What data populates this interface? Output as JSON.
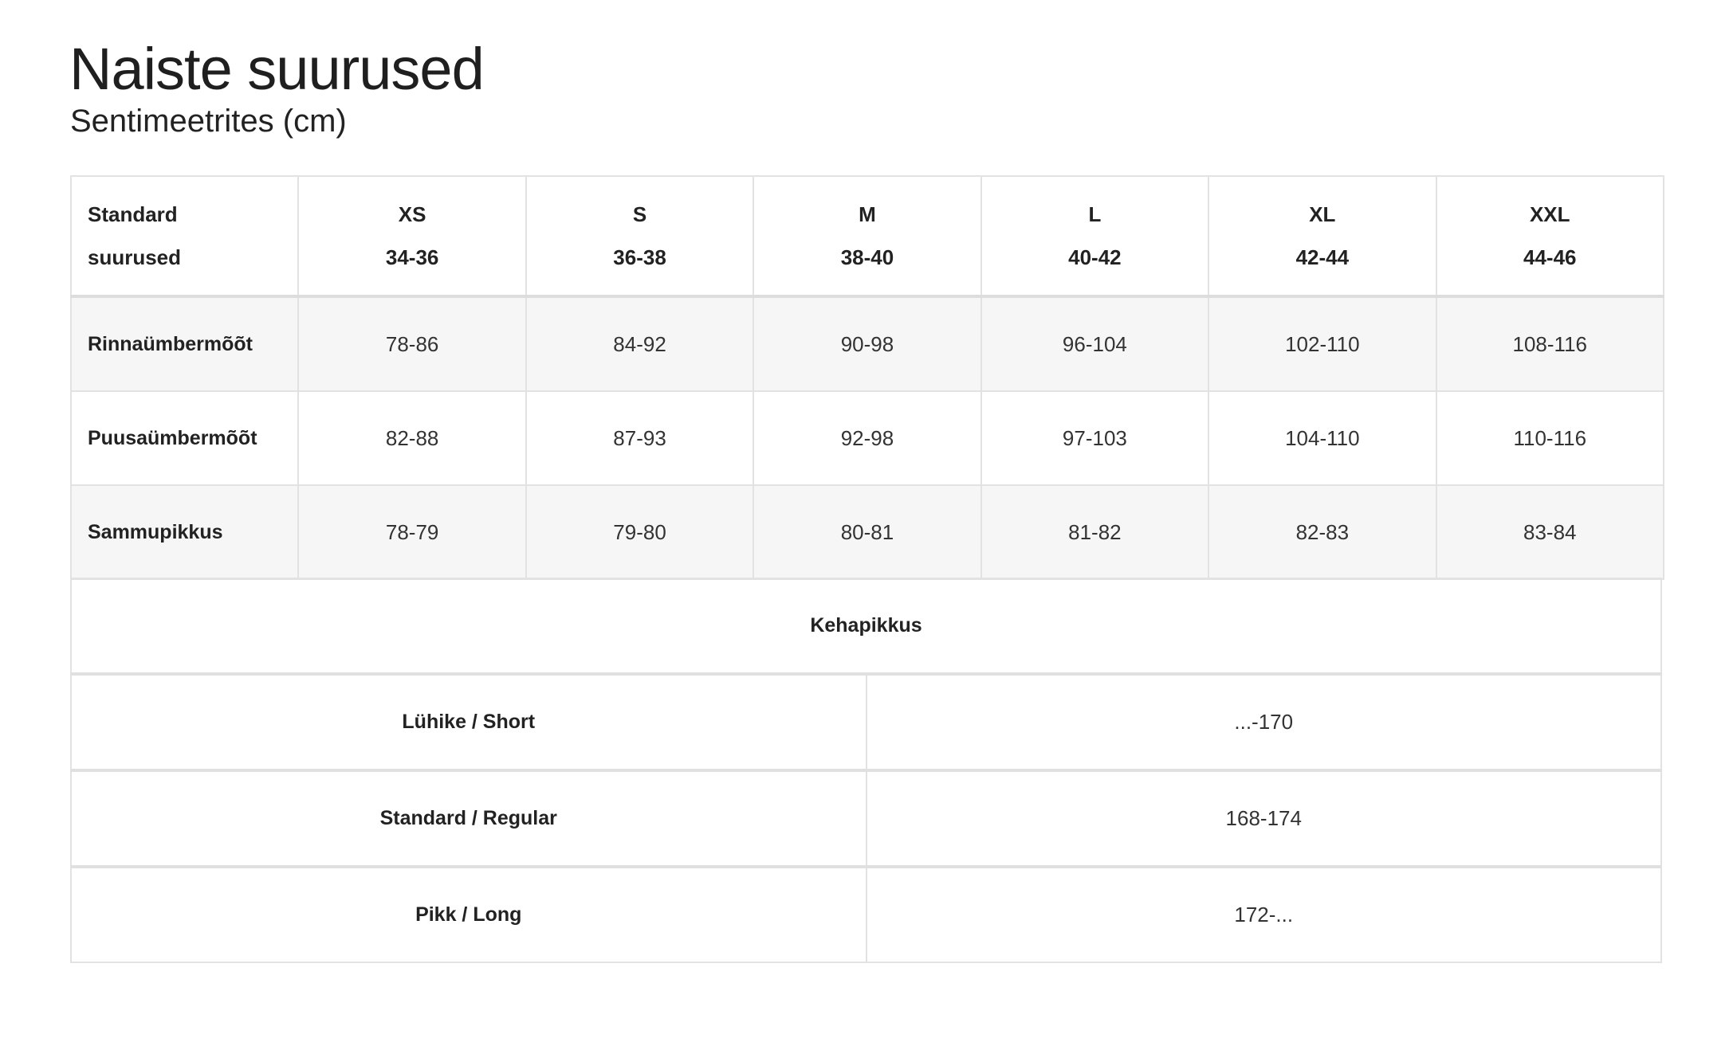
{
  "title": "Naiste suurused",
  "subtitle": "Sentimeetrites (cm)",
  "size_table": {
    "header": {
      "label_line1": "Standard",
      "label_line2": "suurused",
      "sizes": [
        {
          "name": "XS",
          "range": "34-36"
        },
        {
          "name": "S",
          "range": "36-38"
        },
        {
          "name": "M",
          "range": "38-40"
        },
        {
          "name": "L",
          "range": "40-42"
        },
        {
          "name": "XL",
          "range": "42-44"
        },
        {
          "name": "XXL",
          "range": "44-46"
        }
      ]
    },
    "rows": [
      {
        "label": "Rinnaümbermõõt",
        "values": [
          "78-86",
          "84-92",
          "90-98",
          "96-104",
          "102-110",
          "108-116"
        ]
      },
      {
        "label": "Puusaümbermõõt",
        "values": [
          "82-88",
          "87-93",
          "92-98",
          "97-103",
          "104-110",
          "110-116"
        ]
      },
      {
        "label": "Sammupikkus",
        "values": [
          "78-79",
          "79-80",
          "80-81",
          "81-82",
          "82-83",
          "83-84"
        ]
      }
    ]
  },
  "length_table": {
    "heading": "Kehapikkus",
    "rows": [
      {
        "label": "Lühike / Short",
        "value": "...-170"
      },
      {
        "label": "Standard / Regular",
        "value": "168-174"
      },
      {
        "label": "Pikk / Long",
        "value": "172-..."
      }
    ]
  }
}
